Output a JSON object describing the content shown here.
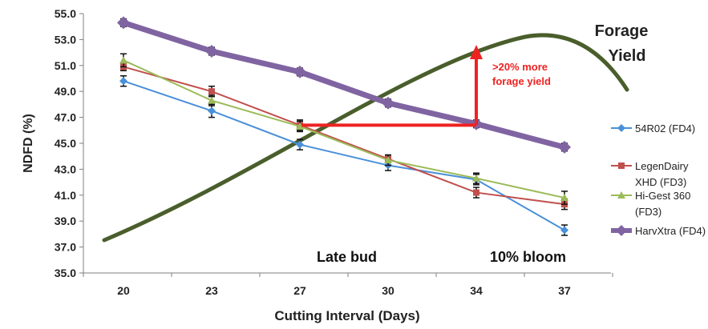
{
  "chart_data": {
    "type": "line",
    "xlabel": "Cutting Interval (Days)",
    "ylabel": "NDFD (%)",
    "categories": [
      "20",
      "23",
      "27",
      "30",
      "34",
      "37"
    ],
    "y_ticks": [
      "55.0",
      "53.0",
      "51.0",
      "49.0",
      "47.0",
      "45.0",
      "43.0",
      "41.0",
      "39.0",
      "37.0",
      "35.0"
    ],
    "ylim": [
      35,
      55
    ],
    "grid": false,
    "legend_position": "right",
    "series": [
      {
        "name": "54R02 (FD4)",
        "color": "#4a90d9",
        "marker": "diamond",
        "values": [
          49.8,
          47.5,
          44.9,
          43.3,
          42.2,
          38.3
        ],
        "error": [
          0.4,
          0.5,
          0.4,
          0.4,
          0.4,
          0.4
        ]
      },
      {
        "name": "LegenDairy XHD (FD3)",
        "color": "#c0504d",
        "marker": "square",
        "values": [
          50.9,
          49.0,
          46.4,
          43.8,
          41.2,
          40.3
        ],
        "error": [
          0.3,
          0.4,
          0.4,
          0.3,
          0.4,
          0.4
        ]
      },
      {
        "name": "Hi-Gest 360 (FD3)",
        "color": "#9bbb59",
        "marker": "triangle",
        "values": [
          51.4,
          48.3,
          46.3,
          43.7,
          42.3,
          40.8
        ],
        "error": [
          0.5,
          0.4,
          0.4,
          0.4,
          0.4,
          0.5
        ]
      },
      {
        "name": "HarvXtra (FD4)",
        "color": "#8064a2",
        "marker": "diamond",
        "values": [
          54.3,
          52.1,
          50.5,
          48.1,
          46.5,
          44.7
        ],
        "error": [
          0.3,
          0.3,
          0.3,
          0.3,
          0.3,
          0.3
        ]
      }
    ],
    "forage_yield_curve": {
      "label": "Forage Yield",
      "color": "#4a5e2c"
    },
    "annotations": {
      "arrow_text": ">20% more forage yield",
      "arrow_color": "#ee2222",
      "stage_left": "Late bud",
      "stage_right": "10% bloom"
    }
  }
}
